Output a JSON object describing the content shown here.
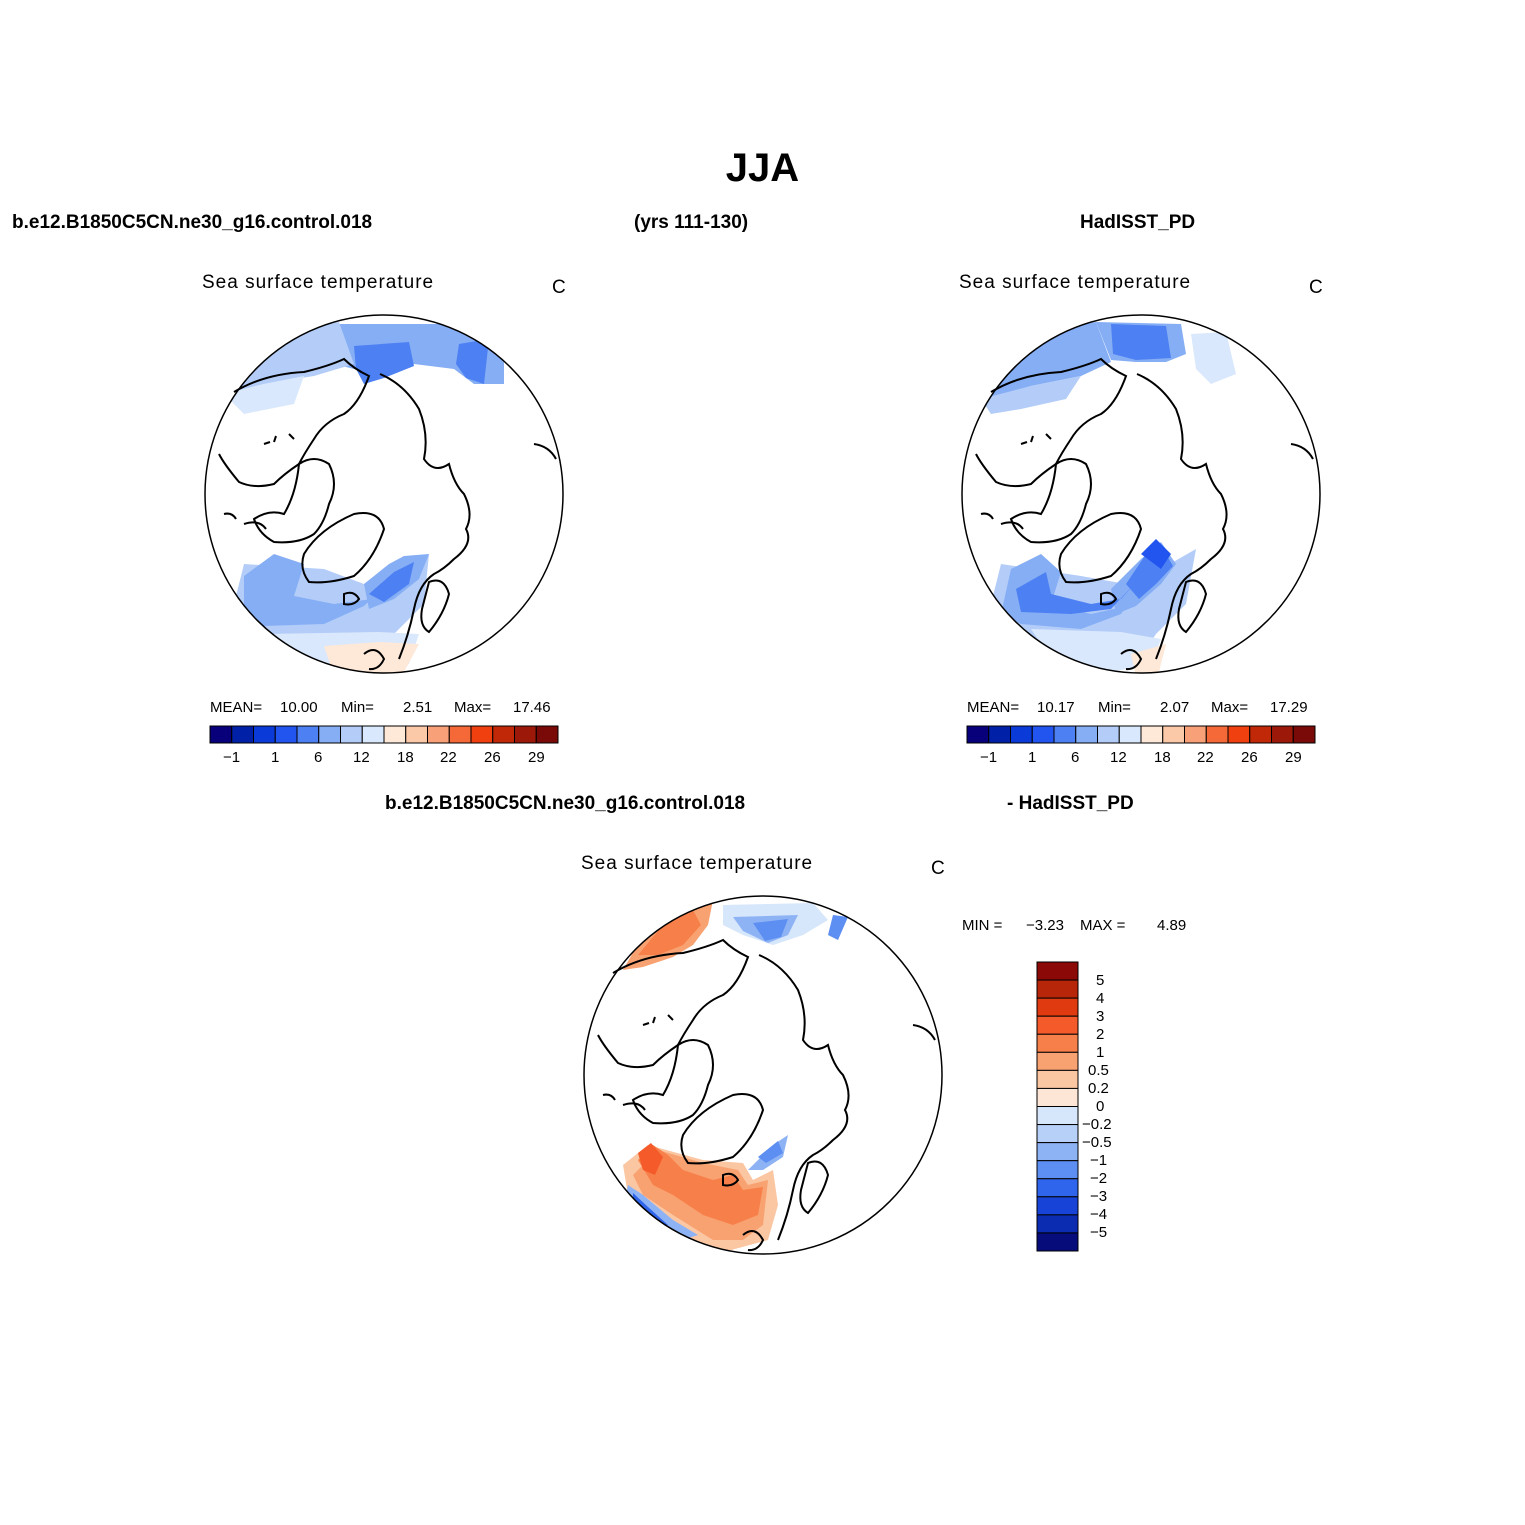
{
  "title": "JJA",
  "header": {
    "case": "b.e12.B1850C5CN.ne30_g16.control.018",
    "years": "(yrs 111-130)",
    "obs": "HadISST_PD"
  },
  "diff_header": {
    "case": "b.e12.B1850C5CN.ne30_g16.control.018",
    "obs": "- HadISST_PD"
  },
  "panels": {
    "model": {
      "title": "Sea surface temperature",
      "units": "C",
      "mean_label": "MEAN=",
      "mean": "10.00",
      "min_label": "Min=",
      "min": "2.51",
      "max_label": "Max=",
      "max": "17.46"
    },
    "obs": {
      "title": "Sea surface temperature",
      "units": "C",
      "mean_label": "MEAN=",
      "mean": "10.17",
      "min_label": "Min=",
      "min": "2.07",
      "max_label": "Max=",
      "max": "17.29"
    },
    "diff": {
      "title": "Sea surface temperature",
      "units": "C",
      "min_label": "MIN =",
      "min": "−3.23",
      "max_label": "MAX =",
      "max": "4.89"
    }
  },
  "colorbar_abs": {
    "colors": [
      "#08007a",
      "#0020a8",
      "#0a3ad8",
      "#2255f0",
      "#4d80f2",
      "#86aef5",
      "#b3cdf8",
      "#d9e8fc",
      "#fee8d8",
      "#fbc8a8",
      "#f8a078",
      "#f56838",
      "#f04010",
      "#c02808",
      "#9c1808",
      "#7a0a08"
    ],
    "tick_labels": [
      "−1",
      "1",
      "6",
      "12",
      "18",
      "22",
      "26",
      "29"
    ]
  },
  "colorbar_diff": {
    "colors_top_to_bottom": [
      "#8b0a08",
      "#b8260a",
      "#df3a10",
      "#f55a2a",
      "#f7804a",
      "#f8a272",
      "#fbc6a2",
      "#fee6d6",
      "#d6e6fb",
      "#b7d0f8",
      "#8eb3f5",
      "#5d8ef2",
      "#2f64ec",
      "#1744d6",
      "#0b2cb0",
      "#060c7a"
    ],
    "labels": [
      "5",
      "4",
      "3",
      "2",
      "1",
      "0.5",
      "0.2",
      "0",
      "−0.2",
      "−0.5",
      "−1",
      "−2",
      "−3",
      "−4",
      "−5"
    ]
  }
}
